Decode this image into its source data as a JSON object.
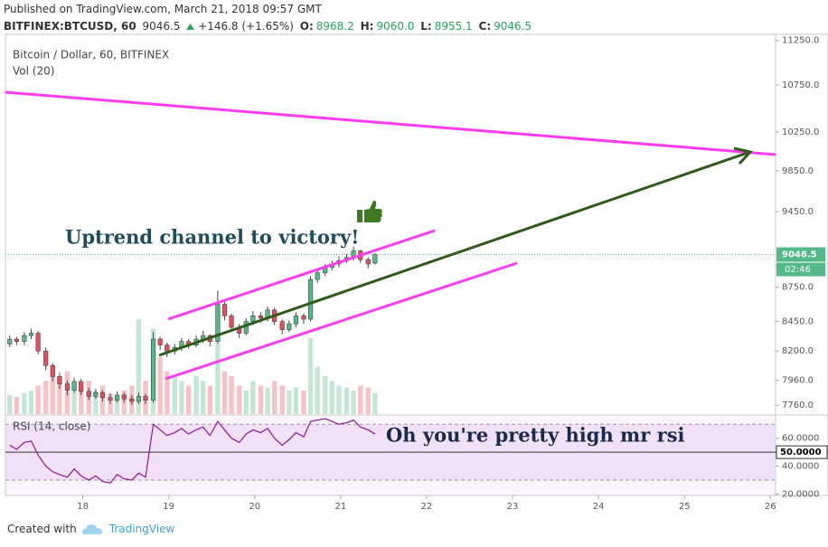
{
  "header": {
    "published": "Published on TradingView.com, March 21, 2018 09:57 GMT",
    "symbol": "BITFINEX:BTCUSD, 60",
    "last": "9046.5",
    "change": "+146.8 (+1.65%)",
    "ohlc": [
      {
        "label": "O:",
        "value": "8968.2"
      },
      {
        "label": "H:",
        "value": "9060.0"
      },
      {
        "label": "L:",
        "value": "8955.1"
      },
      {
        "label": "C:",
        "value": "9046.5"
      }
    ]
  },
  "chart_data": {
    "type": "candlestick",
    "title": "Bitcoin / Dollar, 60, BITFINEX",
    "volume_label": "Vol (20)",
    "x": [
      17.15,
      17.23,
      17.32,
      17.4,
      17.48,
      17.57,
      17.65,
      17.73,
      17.82,
      17.9,
      17.98,
      18.07,
      18.15,
      18.23,
      18.32,
      18.4,
      18.48,
      18.57,
      18.65,
      18.73,
      18.82,
      18.9,
      18.98,
      19.07,
      19.15,
      19.23,
      19.32,
      19.4,
      19.48,
      19.57,
      19.65,
      19.73,
      19.82,
      19.9,
      19.98,
      20.07,
      20.15,
      20.23,
      20.32,
      20.4,
      20.48,
      20.57,
      20.65,
      20.73,
      20.82,
      20.9,
      20.98,
      21.07,
      21.15,
      21.23,
      21.32,
      21.4
    ],
    "open": [
      8260,
      8300,
      8280,
      8330,
      8350,
      8200,
      8080,
      7990,
      7930,
      7880,
      7950,
      7870,
      7830,
      7860,
      7820,
      7800,
      7840,
      7810,
      7790,
      7830,
      7800,
      8300,
      8250,
      8200,
      8230,
      8280,
      8250,
      8300,
      8330,
      8280,
      8600,
      8500,
      8400,
      8350,
      8450,
      8500,
      8480,
      8550,
      8450,
      8380,
      8430,
      8500,
      8470,
      8820,
      8880,
      8930,
      8960,
      8990,
      9020,
      9080,
      9000,
      8968.2
    ],
    "high": [
      8330,
      8320,
      8360,
      8390,
      8370,
      8230,
      8100,
      8020,
      7960,
      7980,
      7970,
      7900,
      7890,
      7880,
      7850,
      7870,
      7860,
      7840,
      7860,
      7850,
      8360,
      8320,
      8270,
      8260,
      8310,
      8300,
      8330,
      8370,
      8340,
      8720,
      8620,
      8520,
      8430,
      8480,
      8540,
      8530,
      8580,
      8570,
      8470,
      8460,
      8530,
      8520,
      8850,
      8910,
      8960,
      8990,
      9030,
      9050,
      9120,
      9090,
      9020,
      9060
    ],
    "low": [
      8230,
      8250,
      8250,
      8300,
      8170,
      8040,
      7950,
      7890,
      7840,
      7860,
      7840,
      7800,
      7810,
      7790,
      7770,
      7780,
      7780,
      7760,
      7770,
      7770,
      7780,
      8210,
      8150,
      8170,
      8200,
      8220,
      8230,
      8270,
      8240,
      8260,
      8460,
      8370,
      8310,
      8330,
      8420,
      8440,
      8450,
      8420,
      8340,
      8360,
      8400,
      8430,
      8450,
      8790,
      8850,
      8900,
      8930,
      8970,
      8990,
      8970,
      8920,
      8955.1
    ],
    "close": [
      8300,
      8280,
      8330,
      8350,
      8200,
      8080,
      7990,
      7930,
      7880,
      7950,
      7870,
      7830,
      7860,
      7820,
      7800,
      7840,
      7810,
      7790,
      7830,
      7800,
      8300,
      8250,
      8200,
      8230,
      8280,
      8250,
      8300,
      8330,
      8280,
      8600,
      8500,
      8400,
      8350,
      8450,
      8500,
      8480,
      8550,
      8450,
      8380,
      8430,
      8500,
      8470,
      8820,
      8880,
      8930,
      8960,
      8990,
      9020,
      9080,
      9000,
      8960,
      9046.5
    ],
    "volume": [
      20,
      18,
      22,
      25,
      30,
      35,
      40,
      38,
      45,
      30,
      28,
      35,
      25,
      30,
      22,
      20,
      25,
      30,
      100,
      35,
      90,
      60,
      45,
      40,
      35,
      30,
      40,
      35,
      30,
      75,
      45,
      40,
      30,
      25,
      35,
      30,
      28,
      35,
      30,
      25,
      28,
      25,
      80,
      50,
      40,
      35,
      30,
      28,
      25,
      30,
      28,
      22
    ],
    "up_color": "#53b987",
    "down_color": "#eb4d5c",
    "log_scale": true,
    "ylim": [
      7690,
      11320
    ],
    "yticks": [
      {
        "value": 7760,
        "label": "7760.0"
      },
      {
        "value": 7960,
        "label": "7960.0"
      },
      {
        "value": 8200,
        "label": "8200.0"
      },
      {
        "value": 8450,
        "label": "8450.0"
      },
      {
        "value": 8750,
        "label": "8750.0"
      },
      {
        "value": 9450,
        "label": "9450.0"
      },
      {
        "value": 9850,
        "label": "9850.0"
      },
      {
        "value": 10250,
        "label": "10250.0"
      },
      {
        "value": 10750,
        "label": "10750.0"
      },
      {
        "value": 11250,
        "label": "11250.0"
      }
    ],
    "xlim": [
      17.1,
      26.06
    ],
    "xticks": [
      18,
      19,
      20,
      21,
      22,
      23,
      24,
      25,
      26
    ],
    "last_price": 9046.5,
    "countdown": "02:46",
    "annotations": [
      "Uptrend channel to victory!",
      "Oh you're pretty high mr rsi"
    ],
    "rsi": {
      "title": "RSI (14, close)",
      "color": "#8e1599",
      "values": [
        55,
        52,
        57,
        58,
        48,
        40,
        36,
        34,
        32,
        38,
        33,
        30,
        33,
        29,
        28,
        34,
        31,
        30,
        35,
        32,
        70,
        66,
        62,
        64,
        67,
        63,
        66,
        68,
        62,
        72,
        66,
        60,
        57,
        63,
        66,
        64,
        67,
        60,
        55,
        59,
        64,
        61,
        72,
        73,
        74,
        72,
        70,
        71,
        73,
        68,
        66,
        63
      ],
      "ylim": [
        19,
        76
      ],
      "yticks": [
        {
          "value": 20,
          "label": "20.0000"
        },
        {
          "value": 40,
          "label": "40.0000"
        },
        {
          "value": 60,
          "label": "60.0000"
        }
      ],
      "bands": [
        30,
        70
      ],
      "midline": {
        "value": 50,
        "label": "50.0000"
      }
    }
  },
  "footer": {
    "created": "Created with",
    "brand": "TradingView"
  }
}
